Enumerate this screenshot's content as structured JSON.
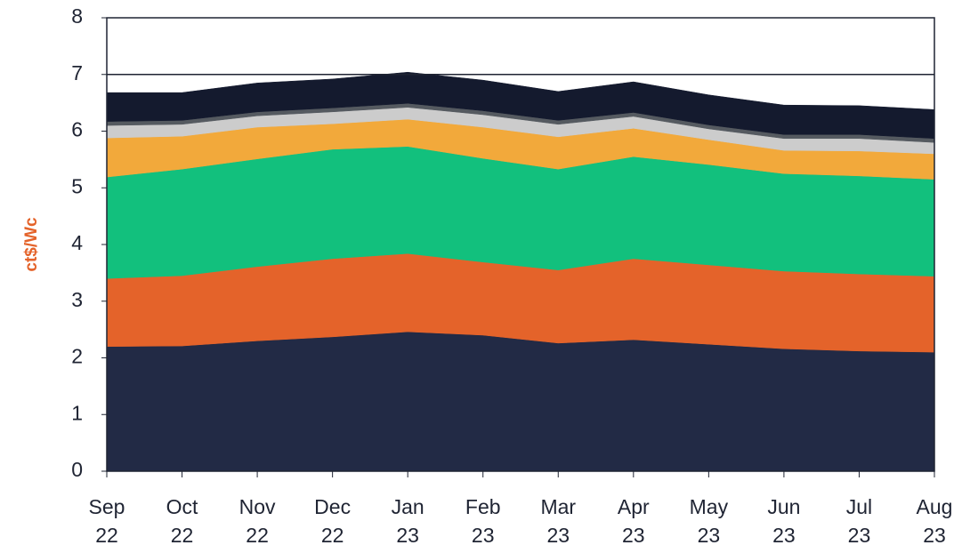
{
  "chart_data": {
    "type": "stacked-area",
    "y_label": "ct$/Wc",
    "categories": [
      "Sep 22",
      "Oct 22",
      "Nov 22",
      "Dec 22",
      "Jan 23",
      "Feb 23",
      "Mar 23",
      "Apr 23",
      "May 23",
      "Jun 23",
      "Jul 23",
      "Aug 23"
    ],
    "series": [
      {
        "color": "#222a45",
        "values": [
          2.2,
          2.21,
          2.3,
          2.37,
          2.46,
          2.4,
          2.26,
          2.32,
          2.24,
          2.16,
          2.12,
          2.1
        ]
      },
      {
        "color": "#e4632a",
        "values": [
          1.2,
          1.24,
          1.31,
          1.38,
          1.38,
          1.29,
          1.29,
          1.43,
          1.4,
          1.37,
          1.36,
          1.34
        ]
      },
      {
        "color": "#12c07d",
        "values": [
          1.79,
          1.88,
          1.9,
          1.93,
          1.89,
          1.83,
          1.78,
          1.8,
          1.77,
          1.72,
          1.73,
          1.71
        ]
      },
      {
        "color": "#f2a93b",
        "values": [
          0.69,
          0.58,
          0.56,
          0.45,
          0.48,
          0.55,
          0.57,
          0.5,
          0.44,
          0.41,
          0.44,
          0.45
        ]
      },
      {
        "color": "#cccccc",
        "values": [
          0.22,
          0.21,
          0.2,
          0.21,
          0.21,
          0.22,
          0.22,
          0.21,
          0.19,
          0.21,
          0.22,
          0.2
        ]
      },
      {
        "color": "#555a60",
        "values": [
          0.07,
          0.07,
          0.07,
          0.07,
          0.07,
          0.07,
          0.07,
          0.07,
          0.07,
          0.07,
          0.07,
          0.07
        ]
      },
      {
        "color": "#141a2e",
        "values": [
          0.51,
          0.49,
          0.51,
          0.51,
          0.55,
          0.54,
          0.51,
          0.54,
          0.53,
          0.52,
          0.51,
          0.51
        ]
      }
    ],
    "ylim": [
      0,
      8
    ],
    "yticks": [
      0,
      1,
      2,
      3,
      4,
      5,
      6,
      7,
      8
    ],
    "reference_line": 7,
    "grid": false
  }
}
